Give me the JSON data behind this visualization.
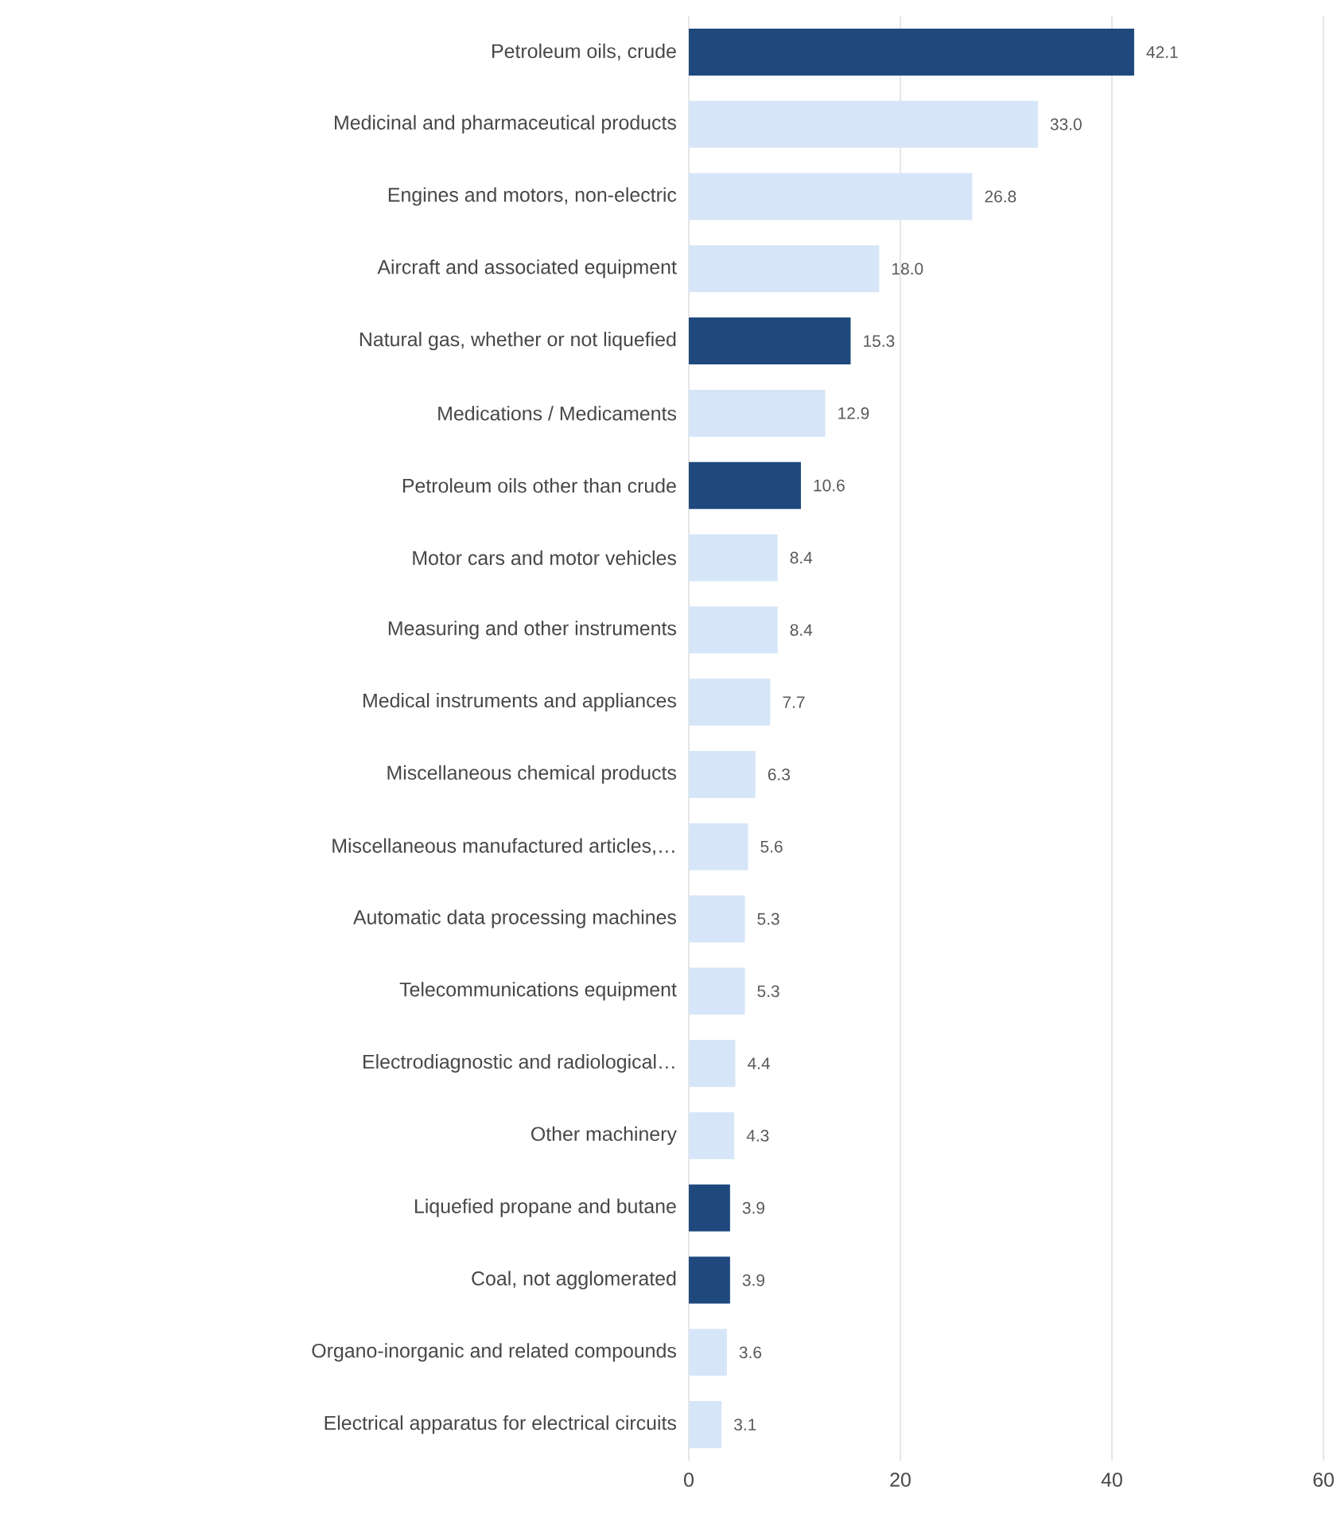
{
  "chart_data": {
    "type": "bar",
    "orientation": "horizontal",
    "categories": [
      "Petroleum oils, crude",
      "Medicinal and pharmaceutical products",
      "Engines and motors, non-electric",
      "Aircraft and associated equipment",
      "Natural gas, whether or not liquefied",
      "Medications / Medicaments",
      "Petroleum oils other than crude",
      "Motor cars and motor vehicles",
      "Measuring and other instruments",
      "Medical instruments and appliances",
      "Miscellaneous chemical products",
      "Miscellaneous manufactured articles,…",
      "Automatic data processing machines",
      "Telecommunications equipment",
      "Electrodiagnostic and radiological…",
      "Other machinery",
      "Liquefied propane and butane",
      "Coal, not agglomerated",
      "Organo-inorganic and related compounds",
      "Electrical apparatus for electrical circuits"
    ],
    "values": [
      42.1,
      33.0,
      26.8,
      18.0,
      15.3,
      12.9,
      10.6,
      8.4,
      8.4,
      7.7,
      6.3,
      5.6,
      5.3,
      5.3,
      4.4,
      4.3,
      3.9,
      3.9,
      3.6,
      3.1
    ],
    "value_labels": [
      "42.1",
      "33.0",
      "26.8",
      "18.0",
      "15.3",
      "12.9",
      "10.6",
      "8.4",
      "8.4",
      "7.7",
      "6.3",
      "5.6",
      "5.3",
      "5.3",
      "4.4",
      "4.3",
      "3.9",
      "3.9",
      "3.6",
      "3.1"
    ],
    "colors": [
      "#1f497d",
      "#d6e6f8",
      "#d6e6f8",
      "#d6e6f8",
      "#1f497d",
      "#d6e6f8",
      "#1f497d",
      "#d6e6f8",
      "#d6e6f8",
      "#d6e6f8",
      "#d6e6f8",
      "#d6e6f8",
      "#d6e6f8",
      "#d6e6f8",
      "#d6e6f8",
      "#d6e6f8",
      "#1f497d",
      "#1f497d",
      "#d6e6f8",
      "#d6e6f8"
    ],
    "xlim": [
      0,
      60
    ],
    "xticks": [
      0,
      20,
      40,
      60
    ],
    "grid": "x"
  }
}
